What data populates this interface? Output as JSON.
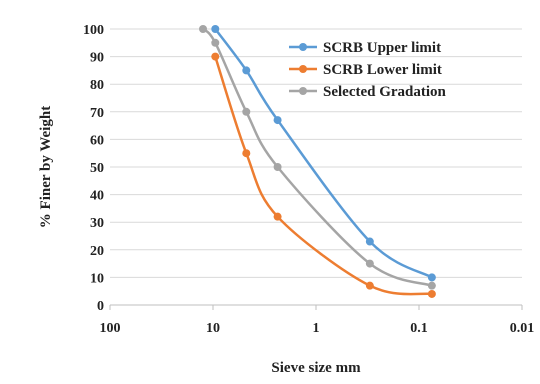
{
  "chart_data": {
    "type": "line",
    "xlabel": "Sieve size mm",
    "ylabel": "% Finer by Weight",
    "x_scale": "log",
    "x_reversed": true,
    "xlim": [
      100,
      0.01
    ],
    "ylim": [
      0,
      100
    ],
    "x_ticks": [
      "100",
      "10",
      "1",
      "0.1",
      "0.01"
    ],
    "y_ticks": [
      "0",
      "10",
      "20",
      "30",
      "40",
      "50",
      "60",
      "70",
      "80",
      "90",
      "100"
    ],
    "grid": "horizontal",
    "legend_position": "top-right",
    "series": [
      {
        "name": "SCRB Upper limit",
        "color": "#5b9bd5",
        "points": [
          [
            9.5,
            100
          ],
          [
            4.75,
            85
          ],
          [
            2.36,
            67
          ],
          [
            0.3,
            23
          ],
          [
            0.075,
            10
          ]
        ]
      },
      {
        "name": "SCRB Lower limit",
        "color": "#ed7d31",
        "points": [
          [
            9.5,
            90
          ],
          [
            4.75,
            55
          ],
          [
            2.36,
            32
          ],
          [
            0.3,
            7
          ],
          [
            0.075,
            4
          ]
        ]
      },
      {
        "name": "Selected Gradation",
        "color": "#a5a5a5",
        "points": [
          [
            12.5,
            100
          ],
          [
            9.5,
            95
          ],
          [
            4.75,
            70
          ],
          [
            2.36,
            50
          ],
          [
            0.3,
            15
          ],
          [
            0.075,
            7
          ]
        ]
      }
    ]
  }
}
